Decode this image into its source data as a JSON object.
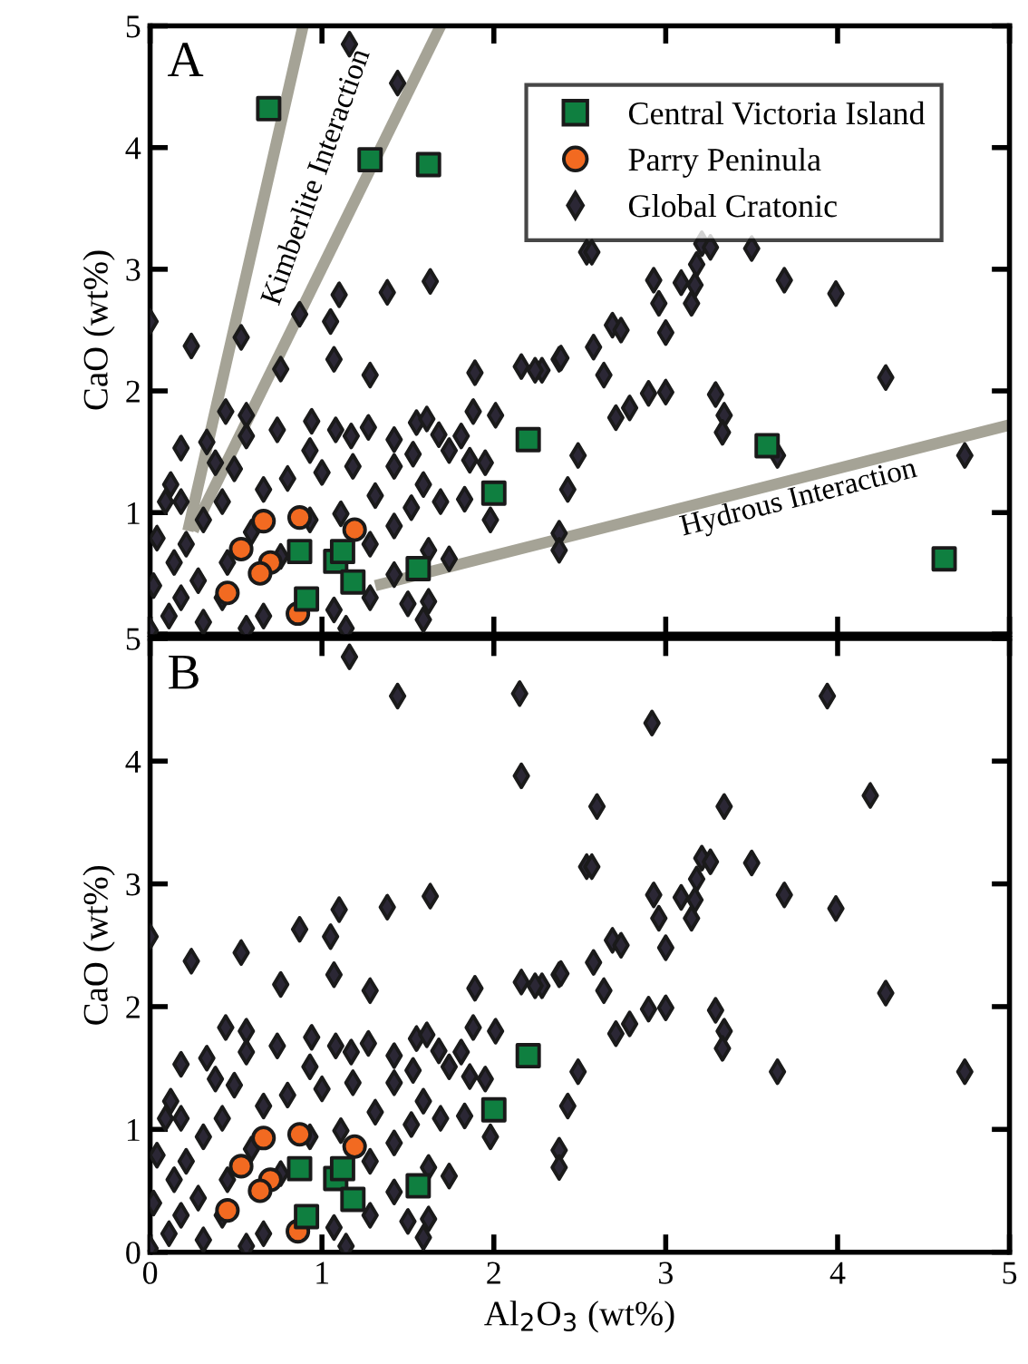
{
  "chart_data": [
    {
      "type": "scatter",
      "ylabel": "CaO (wt%)",
      "xlim": [
        0,
        5
      ],
      "ylim": [
        0,
        5
      ],
      "xticks": [
        {
          "value": 0,
          "label": null
        },
        {
          "value": 1,
          "label": null
        },
        {
          "value": 2,
          "label": null
        },
        {
          "value": 3,
          "label": null
        },
        {
          "value": 4,
          "label": null
        },
        {
          "value": 5,
          "label": null
        }
      ],
      "yticks": [
        {
          "value": 0,
          "label": null
        },
        1,
        2,
        3,
        4,
        5
      ],
      "tick_labels": "y",
      "legend": "top right",
      "grid": false,
      "annotations": [
        "A",
        "Kimberlite Interaction",
        "Hydrous Interaction"
      ],
      "series": [
        {
          "type": "line",
          "color": "#a5a396",
          "x": [
            0.22,
            0.89
          ],
          "values": [
            0.85,
            5
          ]
        },
        {
          "type": "line",
          "color": "#a5a396",
          "x": [
            0.25,
            1.69
          ],
          "values": [
            0.85,
            5
          ]
        },
        {
          "type": "line",
          "color": "#a5a396",
          "x": [
            1.31,
            5
          ],
          "values": [
            0.4,
            1.72
          ]
        },
        {
          "name": "Global Cratonic",
          "marker": "diamond",
          "color": "#2b2735",
          "x": [
            2.54,
            2.57,
            3.21,
            3.26,
            3.5,
            3.18,
            2.93,
            3.09,
            3.69,
            3.99,
            3.17,
            2.96,
            3.15,
            2.69,
            2.74,
            3.0,
            2.58,
            2.28,
            2.38,
            2.64,
            4.28,
            2.9,
            3.0,
            2.79,
            2.71,
            3.29,
            3.34,
            3.33,
            2.49,
            3.65,
            4.74,
            2.43,
            2.38,
            2.38,
            1.16,
            1.44,
            0.0,
            0.24,
            0.53,
            0.87,
            1.05,
            1.1,
            1.38,
            1.63,
            1.07,
            0.76,
            1.28,
            1.89,
            2.16,
            2.24,
            2.39,
            0.44,
            0.56,
            0.56,
            0.74,
            0.94,
            1.08,
            1.27,
            1.55,
            1.61,
            1.88,
            2.01,
            1.68,
            1.81,
            0.18,
            0.33,
            0.93,
            1.17,
            1.42,
            1.53,
            1.74,
            1.86,
            1.95,
            0.38,
            0.49,
            0.12,
            0.18,
            0.09,
            0.04,
            0.02,
            0.11,
            0.31,
            0.56,
            1.14,
            1.5,
            1.62,
            1.59,
            1.74,
            1.98,
            1.83,
            1.69,
            1.59,
            1.42,
            1.31,
            1.18,
            1.0,
            0.8,
            0.66,
            0.42,
            0.31,
            0.21,
            0.14,
            0.28,
            0.18,
            0.42,
            0.66,
            1.07,
            1.28,
            1.42,
            1.62,
            1.42,
            1.28,
            1.52,
            1.11,
            0.93,
            0.59,
            0.76,
            0.45,
            0.0
          ],
          "values": [
            3.14,
            3.14,
            3.21,
            3.18,
            3.17,
            3.04,
            2.91,
            2.89,
            2.91,
            2.8,
            2.87,
            2.72,
            2.72,
            2.54,
            2.5,
            2.48,
            2.36,
            2.17,
            2.26,
            2.13,
            2.11,
            1.98,
            1.99,
            1.86,
            1.78,
            1.97,
            1.8,
            1.66,
            1.47,
            1.47,
            1.47,
            1.19,
            0.83,
            0.69,
            4.85,
            4.53,
            2.57,
            2.37,
            2.44,
            2.63,
            2.57,
            2.79,
            2.81,
            2.9,
            2.26,
            2.18,
            2.13,
            2.15,
            2.2,
            2.17,
            2.27,
            1.83,
            1.8,
            1.63,
            1.68,
            1.75,
            1.68,
            1.7,
            1.74,
            1.77,
            1.83,
            1.8,
            1.64,
            1.63,
            1.53,
            1.58,
            1.51,
            1.63,
            1.6,
            1.48,
            1.51,
            1.43,
            1.41,
            1.41,
            1.36,
            1.23,
            1.09,
            1.09,
            0.79,
            0.4,
            0.15,
            0.1,
            0.05,
            0.05,
            0.25,
            0.27,
            0.12,
            0.62,
            0.94,
            1.11,
            1.09,
            1.23,
            1.38,
            1.14,
            1.38,
            1.33,
            1.28,
            1.19,
            1.09,
            0.94,
            0.74,
            0.59,
            0.44,
            0.3,
            0.3,
            0.15,
            0.2,
            0.3,
            0.49,
            0.69,
            0.89,
            0.74,
            1.04,
            0.99,
            0.94,
            0.84,
            0.64,
            0.59,
            0.03
          ]
        },
        {
          "name": "Parry Peninula",
          "marker": "circle",
          "color": "#f26a21",
          "x": [
            0.66,
            0.87,
            1.19,
            0.53,
            0.7,
            0.64,
            0.45,
            0.86
          ],
          "values": [
            0.93,
            0.96,
            0.86,
            0.7,
            0.59,
            0.5,
            0.34,
            0.17
          ]
        },
        {
          "name": "Central Victoria Island",
          "marker": "square",
          "color": "#0f7f40",
          "x": [
            0.69,
            1.28,
            1.62,
            3.59,
            4.62,
            2.2,
            2.0,
            0.87,
            1.08,
            1.12,
            1.18,
            1.56,
            0.91
          ],
          "values": [
            4.32,
            3.9,
            3.86,
            1.55,
            0.62,
            1.6,
            1.16,
            0.68,
            0.6,
            0.68,
            0.43,
            0.54,
            0.29
          ]
        }
      ]
    },
    {
      "type": "scatter",
      "xlabel": "Al$_{2}$O$_{3}$ (wt%)",
      "ylabel": "CaO (wt%)",
      "xlim": [
        0,
        5
      ],
      "ylim": [
        0,
        5
      ],
      "xticks": [
        0,
        1,
        2,
        3,
        4,
        5
      ],
      "yticks": [
        0,
        1,
        2,
        3,
        4,
        5
      ],
      "grid": false,
      "annotations": [
        "B"
      ],
      "series": [
        {
          "marker": "diamond",
          "color": "#2b2735",
          "x": [
            3.94,
            2.92,
            2.6,
            3.34,
            4.19,
            2.54,
            2.57,
            3.21,
            3.26,
            3.5,
            3.18,
            2.93,
            3.09,
            3.69,
            3.99,
            3.17,
            2.96,
            3.15,
            2.69,
            2.74,
            3.0,
            2.58,
            2.28,
            2.38,
            2.64,
            4.28,
            2.9,
            3.0,
            2.79,
            2.71,
            3.29,
            3.34,
            3.33,
            2.49,
            3.65,
            4.74,
            2.43,
            2.38,
            2.38,
            1.16,
            1.44,
            2.15,
            2.16,
            0.0,
            0.24,
            0.53,
            0.87,
            1.05,
            1.1,
            1.38,
            1.63,
            1.07,
            0.76,
            1.28,
            1.89,
            2.16,
            2.24,
            2.39,
            0.44,
            0.56,
            0.56,
            0.74,
            0.94,
            1.08,
            1.27,
            1.55,
            1.61,
            1.88,
            2.01,
            1.68,
            1.81,
            0.18,
            0.33,
            0.93,
            1.17,
            1.42,
            1.53,
            1.74,
            1.86,
            1.95,
            0.38,
            0.49,
            0.12,
            0.18,
            0.09,
            0.04,
            0.02,
            0.11,
            0.31,
            0.56,
            1.14,
            1.5,
            1.62,
            1.59,
            1.74,
            1.98,
            1.83,
            1.69,
            1.59,
            1.42,
            1.31,
            1.18,
            1.0,
            0.8,
            0.66,
            0.42,
            0.31,
            0.21,
            0.14,
            0.28,
            0.18,
            0.42,
            0.66,
            1.07,
            1.28,
            1.42,
            1.62,
            1.42,
            1.28,
            1.52,
            1.11,
            0.93,
            0.59,
            0.76,
            0.45,
            0.0
          ],
          "values": [
            4.53,
            4.31,
            3.63,
            3.63,
            3.72,
            3.14,
            3.14,
            3.21,
            3.18,
            3.17,
            3.04,
            2.91,
            2.89,
            2.91,
            2.8,
            2.87,
            2.72,
            2.72,
            2.54,
            2.5,
            2.48,
            2.36,
            2.17,
            2.26,
            2.13,
            2.11,
            1.98,
            1.99,
            1.86,
            1.78,
            1.97,
            1.8,
            1.66,
            1.47,
            1.47,
            1.47,
            1.19,
            0.83,
            0.69,
            4.85,
            4.53,
            4.55,
            3.88,
            2.57,
            2.37,
            2.44,
            2.63,
            2.57,
            2.79,
            2.81,
            2.9,
            2.26,
            2.18,
            2.13,
            2.15,
            2.2,
            2.17,
            2.27,
            1.83,
            1.8,
            1.63,
            1.68,
            1.75,
            1.68,
            1.7,
            1.74,
            1.77,
            1.83,
            1.8,
            1.64,
            1.63,
            1.53,
            1.58,
            1.51,
            1.63,
            1.6,
            1.48,
            1.51,
            1.43,
            1.41,
            1.41,
            1.36,
            1.23,
            1.09,
            1.09,
            0.79,
            0.4,
            0.15,
            0.1,
            0.05,
            0.05,
            0.25,
            0.27,
            0.12,
            0.62,
            0.94,
            1.11,
            1.09,
            1.23,
            1.38,
            1.14,
            1.38,
            1.33,
            1.28,
            1.19,
            1.09,
            0.94,
            0.74,
            0.59,
            0.44,
            0.3,
            0.3,
            0.15,
            0.2,
            0.3,
            0.49,
            0.69,
            0.89,
            0.74,
            1.04,
            0.99,
            0.94,
            0.84,
            0.64,
            0.59,
            0.03
          ]
        },
        {
          "marker": "circle",
          "color": "#f26a21",
          "x": [
            0.66,
            0.87,
            1.19,
            0.53,
            0.7,
            0.64,
            0.45,
            0.86
          ],
          "values": [
            0.93,
            0.96,
            0.86,
            0.7,
            0.59,
            0.5,
            0.34,
            0.17
          ]
        },
        {
          "marker": "square",
          "color": "#0f7f40",
          "x": [
            2.2,
            2.0,
            0.87,
            1.08,
            1.12,
            1.18,
            1.56,
            0.91
          ],
          "values": [
            1.6,
            1.16,
            0.68,
            0.6,
            0.68,
            0.43,
            0.54,
            0.29
          ]
        }
      ]
    }
  ]
}
